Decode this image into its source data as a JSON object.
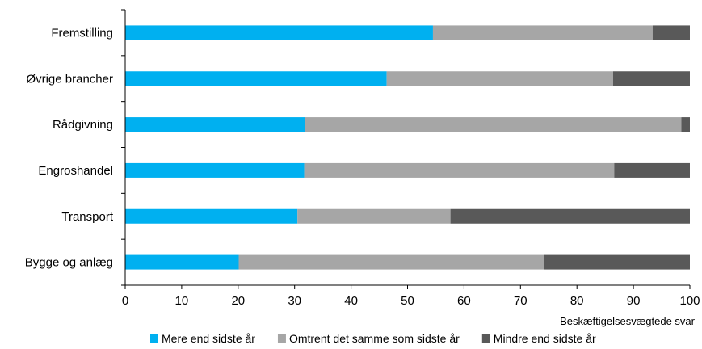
{
  "chart_data": {
    "type": "bar",
    "orientation": "horizontal",
    "stacked": true,
    "categories": [
      "Fremstilling",
      "Øvrige brancher",
      "Rådgivning",
      "Engroshandel",
      "Transport",
      "Bygge og anlæg"
    ],
    "series": [
      {
        "name": "Mere end sidste år",
        "color": "#00b0f0",
        "values": [
          54.5,
          46.3,
          31.9,
          31.7,
          30.5,
          20.1
        ]
      },
      {
        "name": "Omtrent det samme som sidste år",
        "color": "#a6a6a6",
        "values": [
          38.9,
          40.1,
          66.6,
          54.9,
          27.1,
          54.1
        ]
      },
      {
        "name": "Mindre end sidste år",
        "color": "#595959",
        "values": [
          6.6,
          13.6,
          1.5,
          13.4,
          42.4,
          25.8
        ]
      }
    ],
    "xlabel": "Beskæftigelsesvægtede svar",
    "xlim": [
      0,
      100
    ],
    "xticks": [
      "0",
      "10",
      "20",
      "30",
      "40",
      "50",
      "60",
      "70",
      "80",
      "90",
      "100"
    ],
    "grid": false,
    "legend_position": "bottom"
  }
}
